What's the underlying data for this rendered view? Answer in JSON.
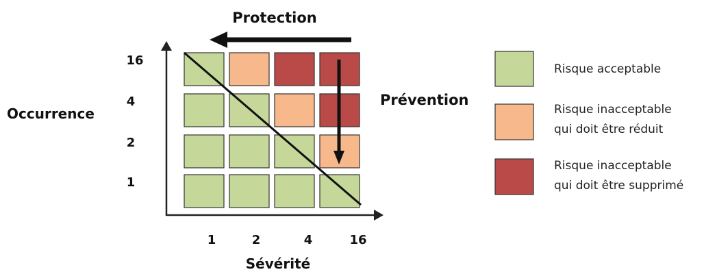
{
  "title_protection": "Protection",
  "label_prevention": "Prévention",
  "axis_y_label": "Occurrence",
  "axis_x_label": "Sévérité",
  "y_ticks": [
    "16",
    "4",
    "2",
    "1"
  ],
  "x_ticks": [
    "1",
    "2",
    "4",
    "16"
  ],
  "colors": {
    "acceptable": "#c5d89a",
    "reduce": "#f7b98b",
    "remove": "#b94a48"
  },
  "grid": [
    [
      "acceptable",
      "reduce",
      "remove",
      "remove"
    ],
    [
      "acceptable",
      "acceptable",
      "reduce",
      "remove"
    ],
    [
      "acceptable",
      "acceptable",
      "acceptable",
      "reduce"
    ],
    [
      "acceptable",
      "acceptable",
      "acceptable",
      "acceptable"
    ]
  ],
  "legend": [
    {
      "key": "acceptable",
      "lines": [
        "Risque acceptable"
      ]
    },
    {
      "key": "reduce",
      "lines": [
        "Risque inacceptable",
        "qui doit être réduit"
      ]
    },
    {
      "key": "remove",
      "lines": [
        "Risque inacceptable",
        "qui doit être supprimé"
      ]
    }
  ]
}
